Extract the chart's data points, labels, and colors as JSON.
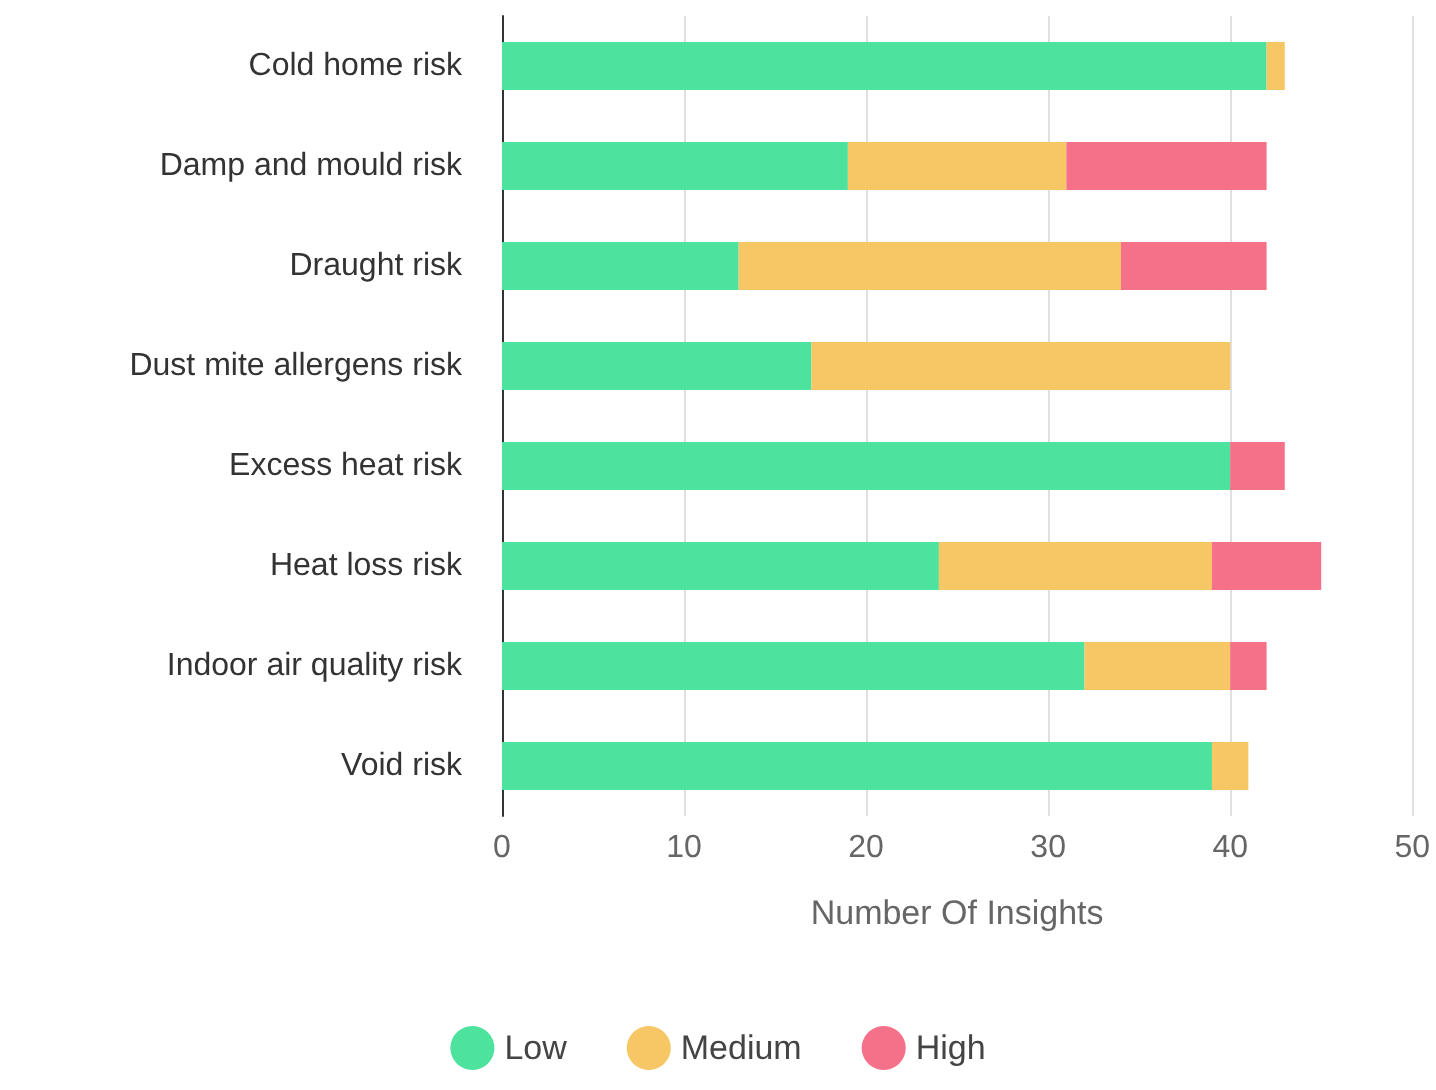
{
  "chart_data": {
    "type": "bar",
    "orientation": "horizontal",
    "stacked": true,
    "xlabel": "Number Of Insights",
    "categories": [
      "Cold home risk",
      "Damp and mould risk",
      "Draught risk",
      "Dust mite allergens risk",
      "Excess heat risk",
      "Heat loss risk",
      "Indoor air quality risk",
      "Void risk"
    ],
    "series": [
      {
        "name": "Low",
        "color": "#4de29e",
        "values": [
          42,
          19,
          13,
          17,
          40,
          24,
          32,
          39
        ]
      },
      {
        "name": "Medium",
        "color": "#f8c765",
        "values": [
          1,
          12,
          21,
          23,
          null,
          15,
          8,
          2
        ]
      },
      {
        "name": "High",
        "color": "#f5718a",
        "values": [
          null,
          11,
          8,
          null,
          3,
          6,
          2,
          null
        ]
      }
    ],
    "xlim": [
      0,
      50
    ],
    "xticks": [
      0,
      10,
      20,
      30,
      40,
      50
    ],
    "grid": "x",
    "legend": "bottom"
  }
}
